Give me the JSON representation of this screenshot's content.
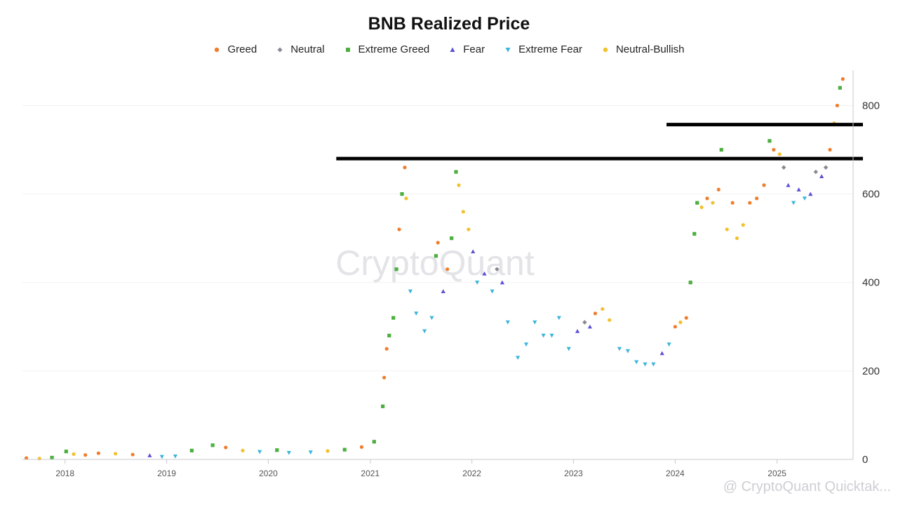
{
  "chart_data": {
    "type": "scatter",
    "title": "BNB Realized Price",
    "ylim": [
      0,
      880
    ],
    "y_ticks": [
      0,
      200,
      400,
      600,
      800
    ],
    "x_ticks": [
      "2018",
      "2019",
      "2020",
      "2021",
      "2022",
      "2023",
      "2024",
      "2025"
    ],
    "grid": true,
    "legend_position": "top-center",
    "series": [
      {
        "name": "Greed",
        "color": "#f07d2c",
        "marker": "circle"
      },
      {
        "name": "Neutral",
        "color": "#8a8790",
        "marker": "diamond"
      },
      {
        "name": "Extreme Greed",
        "color": "#4caf3f",
        "marker": "square"
      },
      {
        "name": "Fear",
        "color": "#5b4fd6",
        "marker": "triangle-up"
      },
      {
        "name": "Extreme Fear",
        "color": "#3cb6dc",
        "marker": "triangle-down"
      },
      {
        "name": "Neutral-Bullish",
        "color": "#f2c12e",
        "marker": "circle"
      }
    ],
    "points": [
      [
        "2017-08-15",
        3,
        0
      ],
      [
        "2017-10-01",
        2,
        5
      ],
      [
        "2017-11-15",
        4,
        2
      ],
      [
        "2018-01-05",
        18,
        2
      ],
      [
        "2018-02-01",
        12,
        5
      ],
      [
        "2018-03-15",
        10,
        0
      ],
      [
        "2018-05-01",
        14,
        0
      ],
      [
        "2018-07-01",
        13,
        5
      ],
      [
        "2018-09-01",
        11,
        0
      ],
      [
        "2018-11-01",
        9,
        3
      ],
      [
        "2018-12-15",
        6,
        4
      ],
      [
        "2019-02-01",
        7,
        4
      ],
      [
        "2019-04-01",
        20,
        2
      ],
      [
        "2019-06-15",
        32,
        2
      ],
      [
        "2019-08-01",
        27,
        0
      ],
      [
        "2019-10-01",
        20,
        5
      ],
      [
        "2019-12-01",
        17,
        4
      ],
      [
        "2020-02-01",
        21,
        2
      ],
      [
        "2020-03-15",
        15,
        4
      ],
      [
        "2020-06-01",
        16,
        4
      ],
      [
        "2020-08-01",
        19,
        5
      ],
      [
        "2020-10-01",
        22,
        2
      ],
      [
        "2020-12-01",
        28,
        0
      ],
      [
        "2021-01-15",
        40,
        2
      ],
      [
        "2021-02-15",
        120,
        2
      ],
      [
        "2021-02-20",
        185,
        0
      ],
      [
        "2021-03-01",
        250,
        0
      ],
      [
        "2021-03-10",
        280,
        2
      ],
      [
        "2021-03-25",
        320,
        2
      ],
      [
        "2021-04-05",
        430,
        2
      ],
      [
        "2021-04-15",
        520,
        0
      ],
      [
        "2021-04-25",
        600,
        2
      ],
      [
        "2021-05-05",
        660,
        0
      ],
      [
        "2021-05-10",
        590,
        5
      ],
      [
        "2021-05-25",
        380,
        4
      ],
      [
        "2021-06-15",
        330,
        4
      ],
      [
        "2021-07-15",
        290,
        4
      ],
      [
        "2021-08-10",
        320,
        4
      ],
      [
        "2021-08-25",
        460,
        2
      ],
      [
        "2021-09-01",
        490,
        0
      ],
      [
        "2021-09-20",
        380,
        3
      ],
      [
        "2021-10-05",
        430,
        0
      ],
      [
        "2021-10-20",
        500,
        2
      ],
      [
        "2021-11-05",
        650,
        2
      ],
      [
        "2021-11-15",
        620,
        5
      ],
      [
        "2021-12-01",
        560,
        5
      ],
      [
        "2021-12-20",
        520,
        5
      ],
      [
        "2022-01-05",
        470,
        3
      ],
      [
        "2022-01-20",
        400,
        4
      ],
      [
        "2022-02-15",
        420,
        3
      ],
      [
        "2022-03-15",
        380,
        4
      ],
      [
        "2022-04-01",
        430,
        1
      ],
      [
        "2022-04-20",
        400,
        3
      ],
      [
        "2022-05-10",
        310,
        4
      ],
      [
        "2022-06-15",
        230,
        4
      ],
      [
        "2022-07-15",
        260,
        4
      ],
      [
        "2022-08-15",
        310,
        4
      ],
      [
        "2022-09-15",
        280,
        4
      ],
      [
        "2022-10-15",
        280,
        4
      ],
      [
        "2022-11-10",
        320,
        4
      ],
      [
        "2022-12-15",
        250,
        4
      ],
      [
        "2023-01-15",
        290,
        3
      ],
      [
        "2023-02-10",
        310,
        1
      ],
      [
        "2023-03-01",
        300,
        3
      ],
      [
        "2023-03-20",
        330,
        0
      ],
      [
        "2023-04-15",
        340,
        5
      ],
      [
        "2023-05-10",
        315,
        5
      ],
      [
        "2023-06-15",
        250,
        4
      ],
      [
        "2023-07-15",
        245,
        4
      ],
      [
        "2023-08-15",
        220,
        4
      ],
      [
        "2023-09-15",
        215,
        4
      ],
      [
        "2023-10-15",
        215,
        4
      ],
      [
        "2023-11-15",
        240,
        3
      ],
      [
        "2023-12-10",
        260,
        4
      ],
      [
        "2024-01-01",
        300,
        0
      ],
      [
        "2024-01-20",
        310,
        5
      ],
      [
        "2024-02-10",
        320,
        0
      ],
      [
        "2024-02-25",
        400,
        2
      ],
      [
        "2024-03-10",
        510,
        2
      ],
      [
        "2024-03-20",
        580,
        2
      ],
      [
        "2024-04-05",
        570,
        5
      ],
      [
        "2024-04-25",
        590,
        0
      ],
      [
        "2024-05-15",
        580,
        5
      ],
      [
        "2024-06-05",
        610,
        0
      ],
      [
        "2024-06-15",
        700,
        2
      ],
      [
        "2024-07-05",
        520,
        5
      ],
      [
        "2024-07-25",
        580,
        0
      ],
      [
        "2024-08-10",
        500,
        5
      ],
      [
        "2024-09-01",
        530,
        5
      ],
      [
        "2024-09-25",
        580,
        0
      ],
      [
        "2024-10-20",
        590,
        0
      ],
      [
        "2024-11-15",
        620,
        0
      ],
      [
        "2024-12-05",
        720,
        2
      ],
      [
        "2024-12-20",
        700,
        0
      ],
      [
        "2025-01-10",
        690,
        5
      ],
      [
        "2025-01-25",
        660,
        1
      ],
      [
        "2025-02-10",
        620,
        3
      ],
      [
        "2025-03-01",
        580,
        4
      ],
      [
        "2025-03-20",
        610,
        3
      ],
      [
        "2025-04-10",
        590,
        4
      ],
      [
        "2025-05-01",
        600,
        3
      ],
      [
        "2025-05-20",
        650,
        1
      ],
      [
        "2025-06-10",
        640,
        3
      ],
      [
        "2025-06-25",
        660,
        1
      ],
      [
        "2025-07-10",
        700,
        0
      ],
      [
        "2025-07-25",
        760,
        5
      ],
      [
        "2025-08-05",
        800,
        0
      ],
      [
        "2025-08-15",
        840,
        2
      ],
      [
        "2025-08-25",
        860,
        0
      ]
    ],
    "annotations": [
      {
        "type": "horizontal-line",
        "y": 680,
        "x_from": "2020-09-01"
      },
      {
        "type": "horizontal-line",
        "y": 757,
        "x_from": "2023-12-01"
      }
    ],
    "watermark": "CryptoQuant",
    "credit": "@ CryptoQuant Quicktak..."
  }
}
